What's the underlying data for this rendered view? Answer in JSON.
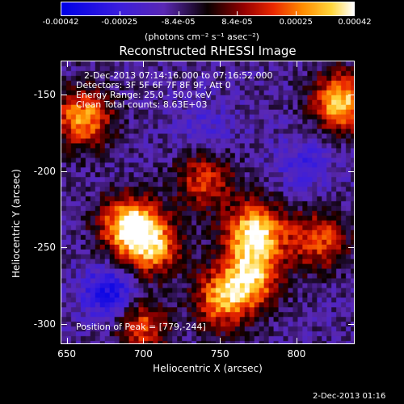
{
  "colorbar": {
    "tick_labels": [
      "-0.00042",
      "-0.00025",
      "-8.4e-05",
      "8.4e-05",
      "0.00025",
      "0.00042"
    ],
    "units_label": "(photons cm⁻² s⁻¹ asec⁻²)"
  },
  "title": "Reconstructed RHESSI Image",
  "annotations": {
    "time_range": "2-Dec-2013 07:14:16.000 to 07:16:52.000",
    "detectors": "Detectors: 3F 5F 6F 7F 8F 9F, Att 0",
    "energy": "Energy Range: 25.0 - 50.0 keV",
    "algorithm": "Clean     Total counts: 8.63E+03",
    "peak": "Position of Peak = [779,-244]"
  },
  "footer_timestamp": "2-Dec-2013 01:16",
  "chart_data": {
    "type": "heatmap",
    "title": "Reconstructed RHESSI Image",
    "xlabel": "Heliocentric X (arcsec)",
    "ylabel": "Heliocentric Y (arcsec)",
    "xlim": [
      646,
      838
    ],
    "ylim": [
      -313,
      -128
    ],
    "x_ticks": [
      650,
      700,
      750,
      800
    ],
    "y_ticks": [
      -300,
      -250,
      -200,
      -150
    ],
    "colorbar_range": [
      -0.00042,
      0.00042
    ],
    "peak_position": [
      779,
      -244
    ],
    "colormap": "blue-purple-black-red-yellow-white",
    "bright_regions": [
      {
        "x": 690,
        "y": -235,
        "level": 0.85
      },
      {
        "x": 705,
        "y": -250,
        "level": 0.7
      },
      {
        "x": 773,
        "y": -240,
        "level": 0.95
      },
      {
        "x": 770,
        "y": -270,
        "level": 0.75
      },
      {
        "x": 750,
        "y": -285,
        "level": 0.6
      },
      {
        "x": 660,
        "y": -165,
        "level": 0.7
      },
      {
        "x": 830,
        "y": -155,
        "level": 0.85
      },
      {
        "x": 700,
        "y": -300,
        "level": 0.55
      },
      {
        "x": 815,
        "y": -245,
        "level": 0.5
      },
      {
        "x": 740,
        "y": -205,
        "level": 0.45
      }
    ],
    "dark_regions": [
      {
        "x": 680,
        "y": -280,
        "level": -0.9
      },
      {
        "x": 805,
        "y": -195,
        "level": -0.55
      },
      {
        "x": 740,
        "y": -175,
        "level": -0.5
      },
      {
        "x": 720,
        "y": -290,
        "level": -0.4
      }
    ]
  }
}
